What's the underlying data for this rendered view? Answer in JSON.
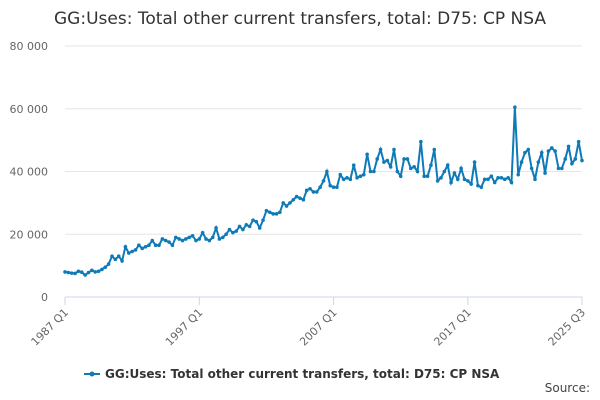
{
  "chart_data": {
    "type": "line",
    "title": "GG:Uses: Total other current transfers, total: D75: CP NSA",
    "source": "Source:",
    "categories": [
      "1987 Q1",
      null,
      null,
      null,
      null,
      null,
      null,
      null,
      null,
      null,
      null,
      null,
      null,
      null,
      null,
      null,
      null,
      null,
      null,
      null,
      null,
      null,
      null,
      null,
      null,
      null,
      null,
      null,
      null,
      null,
      null,
      null,
      null,
      null,
      null,
      null,
      null,
      null,
      null,
      null,
      "1997 Q1",
      null,
      null,
      null,
      null,
      null,
      null,
      null,
      null,
      null,
      null,
      null,
      null,
      null,
      null,
      null,
      null,
      null,
      null,
      null,
      null,
      null,
      null,
      null,
      null,
      null,
      null,
      null,
      null,
      null,
      null,
      null,
      null,
      null,
      null,
      null,
      null,
      null,
      null,
      null,
      "2007 Q1",
      null,
      null,
      null,
      null,
      null,
      null,
      null,
      null,
      null,
      null,
      null,
      null,
      null,
      null,
      null,
      null,
      null,
      null,
      null,
      null,
      null,
      null,
      null,
      null,
      null,
      null,
      null,
      null,
      null,
      null,
      null,
      null,
      null,
      null,
      null,
      null,
      null,
      null,
      null,
      "2017 Q1",
      null,
      null,
      null,
      null,
      null,
      null,
      null,
      null,
      null,
      null,
      null,
      null,
      null,
      null,
      null,
      null,
      null,
      null,
      null,
      null,
      null,
      null,
      null,
      null,
      null,
      null,
      null,
      null,
      null,
      null,
      null,
      null,
      null,
      "2025 Q3"
    ],
    "series": [
      {
        "name": "GG:Uses: Total other current transfers, total: D75: CP NSA",
        "color": "#0e7ab8",
        "values": [
          8000,
          7800,
          7600,
          7500,
          8200,
          7900,
          7000,
          7800,
          8500,
          8000,
          8200,
          8800,
          9500,
          10500,
          13000,
          12000,
          13000,
          11500,
          16000,
          14000,
          14500,
          15000,
          16500,
          15500,
          16000,
          16500,
          18000,
          16500,
          16500,
          18500,
          18000,
          17500,
          16500,
          19000,
          18500,
          18000,
          18500,
          19000,
          19500,
          18000,
          18500,
          20500,
          18500,
          18000,
          19000,
          22000,
          18500,
          19000,
          20000,
          21500,
          20500,
          21000,
          22500,
          21500,
          23000,
          22500,
          24500,
          24000,
          22000,
          24500,
          27500,
          27000,
          26500,
          26500,
          27000,
          30000,
          29000,
          30000,
          31000,
          32000,
          31500,
          31000,
          34000,
          34500,
          33500,
          33500,
          35000,
          37000,
          40000,
          35500,
          35000,
          35000,
          39000,
          37500,
          38000,
          37500,
          42000,
          38000,
          38500,
          39000,
          45500,
          40000,
          40000,
          44000,
          47000,
          43000,
          43500,
          41500,
          47000,
          40000,
          38500,
          44000,
          44000,
          41000,
          41500,
          40000,
          49500,
          38500,
          38500,
          42000,
          47000,
          37000,
          38000,
          40000,
          42000,
          36500,
          39500,
          37500,
          41000,
          37500,
          37000,
          36000,
          43000,
          35500,
          35000,
          37500,
          37500,
          38500,
          36500,
          38000,
          38000,
          37500,
          38000,
          36500,
          60500,
          39000,
          43000,
          46000,
          47000,
          41000,
          37500,
          43000,
          46000,
          39500,
          46500,
          47500,
          46500,
          41000,
          41000,
          44000,
          48000,
          42500,
          44000,
          49500,
          43500
        ]
      }
    ],
    "ylim": [
      0,
      80000
    ],
    "yticks": [
      0,
      {
        "value": 20000,
        "label": "20 000"
      },
      {
        "value": 40000,
        "label": "40 000"
      },
      {
        "value": 60000,
        "label": "60 000"
      },
      {
        "value": 80000,
        "label": "80 000"
      }
    ],
    "grid": true
  }
}
